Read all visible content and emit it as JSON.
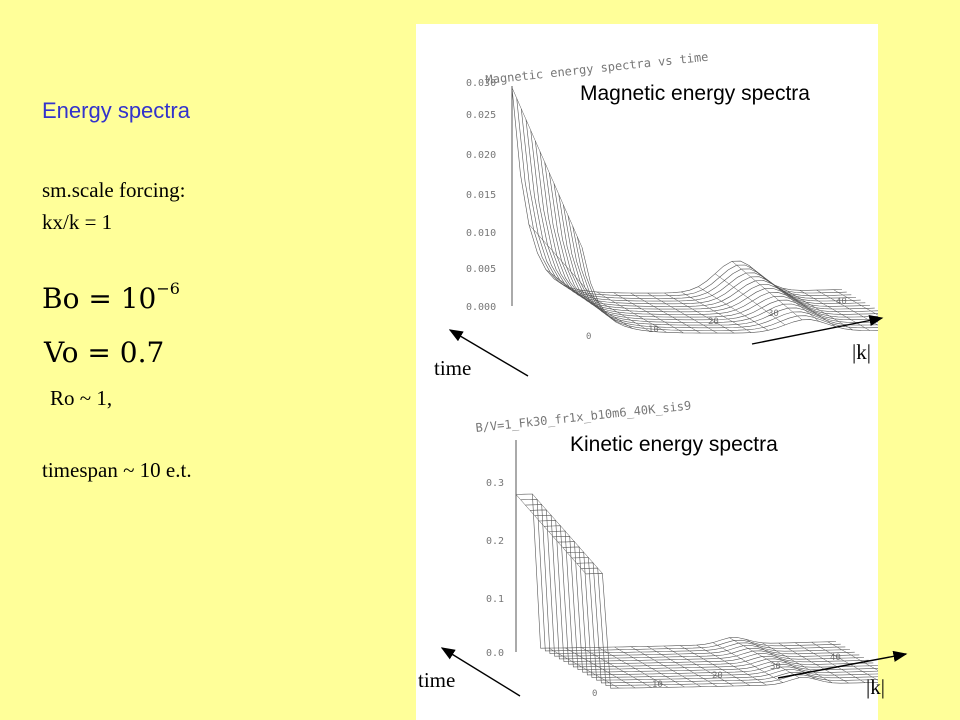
{
  "slide": {
    "title": "Energy spectra",
    "forcing_label": "sm.scale forcing:",
    "forcing_value": "kx/k = 1",
    "bo_equation": {
      "lhs": "Bo",
      "base": "10",
      "exponent": "−6"
    },
    "vo_equation": {
      "lhs": "Vo",
      "rhs": "0.7"
    },
    "ro_line": "Ro ~ 1,",
    "timespan_line": "timespan ~ 10 e.t."
  },
  "plots": {
    "top": {
      "caption": "Magnetic energy spectra",
      "embedded_title": "Magnetic energy spectra vs time",
      "y_ticks": [
        "0.030",
        "0.025",
        "0.020",
        "0.015",
        "0.010",
        "0.005",
        "0.000"
      ],
      "x_ticks": [
        "0",
        "10",
        "20",
        "30",
        "40"
      ],
      "time_label": "time",
      "k_label": "|k|"
    },
    "bottom": {
      "caption": "Kinetic energy spectra",
      "embedded_title": "B/V=1_Fk30_fr1x_b10m6_40K_sis9",
      "y_ticks": [
        "0.3",
        "0.2",
        "0.1",
        "0.0"
      ],
      "x_ticks": [
        "0",
        "10",
        "20",
        "30",
        "40"
      ],
      "time_label": "time",
      "k_label": "|k|"
    }
  },
  "colors": {
    "background": "#ffff99",
    "title": "#3333cc",
    "plot_background": "#ffffff",
    "wire": "#555555"
  }
}
